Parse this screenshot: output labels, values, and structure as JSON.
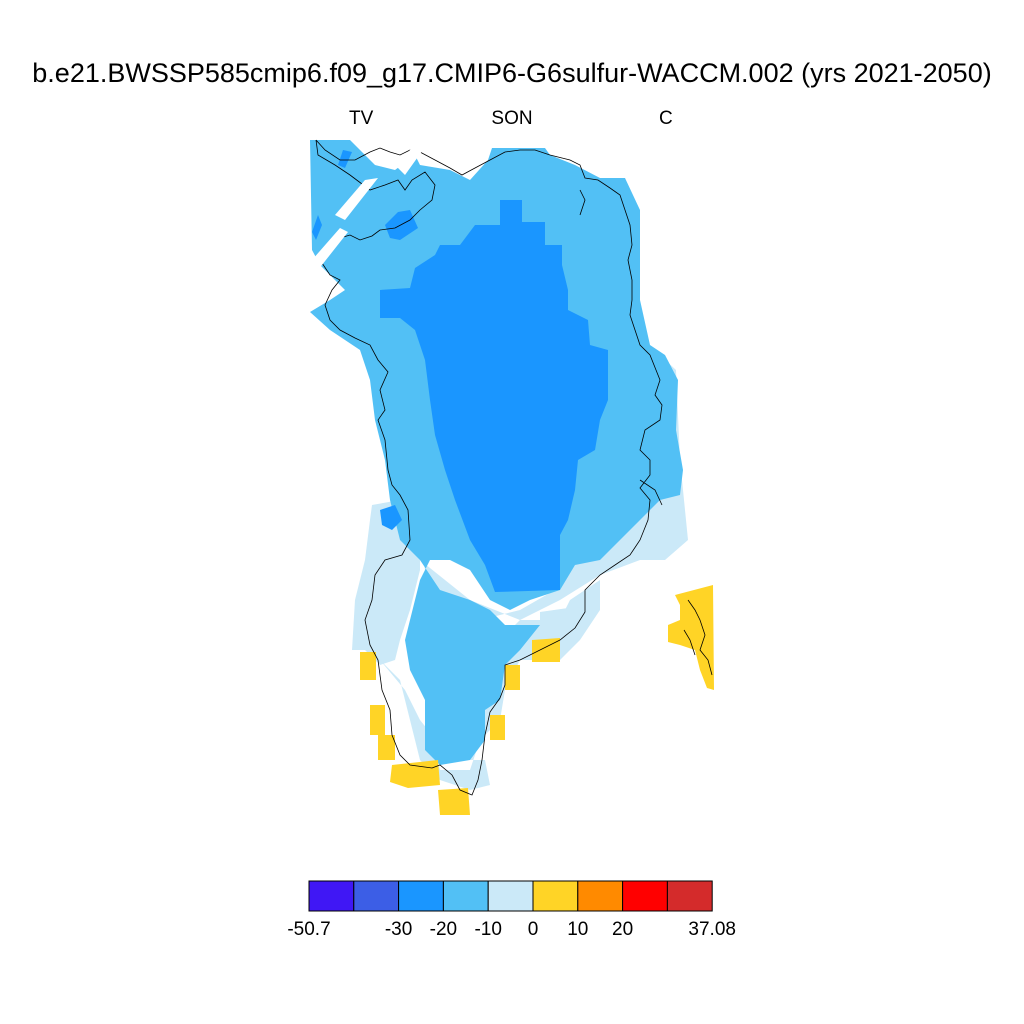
{
  "header": {
    "title": "b.e21.BWSSP585cmip6.f09_g17.CMIP6-G6sulfur-WACCM.002 (yrs 2021-2050)",
    "left_label": "TV",
    "center_label": "SON",
    "right_label": "C"
  },
  "map": {
    "region": "Greenland",
    "fill_colors": {
      "very_negative": "#1a96ff",
      "negative": "#52c0f5",
      "slightly_negative": "#cbe9f8",
      "positive": "#ffd426"
    }
  },
  "colorbar": {
    "colors": [
      "#4017f5",
      "#3c5ee6",
      "#1a96ff",
      "#52c0f5",
      "#cbe9f8",
      "#ffd426",
      "#ff8a00",
      "#ff0000",
      "#d42b2b"
    ],
    "tick_labels": [
      "-50.7",
      "-30",
      "-20",
      "-10",
      "0",
      "10",
      "20",
      "37.08"
    ],
    "tick_values": [
      -50.7,
      -30,
      -20,
      -10,
      0,
      10,
      20,
      37.08
    ]
  }
}
